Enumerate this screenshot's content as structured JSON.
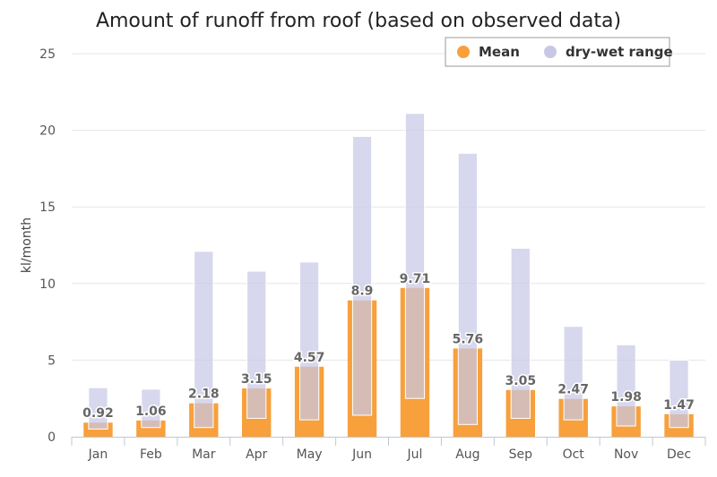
{
  "chart_data": {
    "type": "bar",
    "title": "Amount of runoff from roof (based on observed data)",
    "xlabel": "",
    "ylabel": "kl/month",
    "ylim": [
      0,
      25
    ],
    "yticks": [
      0,
      5,
      10,
      15,
      20,
      25
    ],
    "grid": true,
    "legend_position": "top-right",
    "categories": [
      "Jan",
      "Feb",
      "Mar",
      "Apr",
      "May",
      "Jun",
      "Jul",
      "Aug",
      "Sep",
      "Oct",
      "Nov",
      "Dec"
    ],
    "series": [
      {
        "name": "Mean",
        "type": "bar",
        "color": "#f7a03c",
        "values": [
          0.92,
          1.06,
          2.18,
          3.15,
          4.57,
          8.9,
          9.71,
          5.76,
          3.05,
          2.47,
          1.98,
          1.47
        ],
        "data_labels": [
          "0.92",
          "1.06",
          "2.18",
          "3.15",
          "4.57",
          "8.9",
          "9.71",
          "5.76",
          "3.05",
          "2.47",
          "1.98",
          "1.47"
        ]
      },
      {
        "name": "dry-wet range",
        "type": "range",
        "color": "#c8c8e6",
        "low": [
          0.5,
          0.6,
          0.6,
          1.2,
          1.1,
          1.4,
          2.5,
          0.8,
          1.2,
          1.1,
          0.7,
          0.6
        ],
        "high": [
          3.2,
          3.1,
          12.1,
          10.8,
          11.4,
          19.6,
          21.1,
          18.5,
          12.3,
          7.2,
          6.0,
          5.0
        ]
      }
    ]
  }
}
